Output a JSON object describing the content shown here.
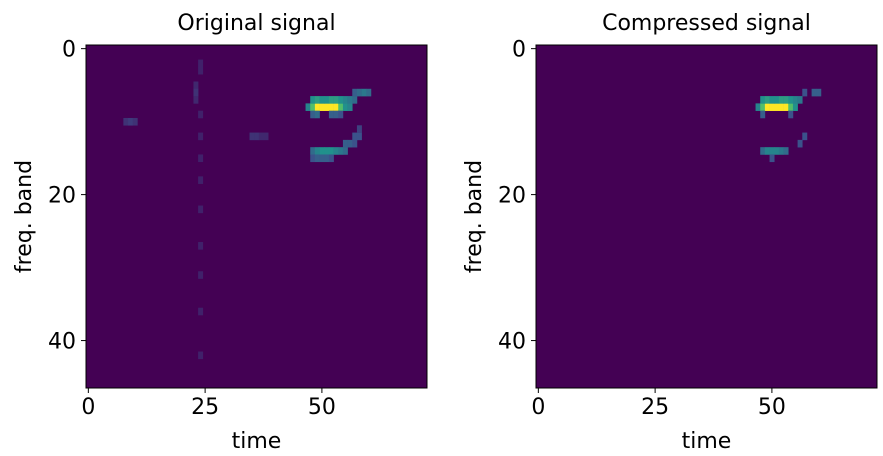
{
  "chart_data": [
    {
      "type": "heatmap",
      "title": "Original signal",
      "xlabel": "time",
      "ylabel": "freq. band",
      "xlim": [
        -0.5,
        72.5
      ],
      "ylim": [
        46.5,
        -0.5
      ],
      "xticks": [
        0,
        25,
        50
      ],
      "yticks": [
        0,
        20,
        40
      ],
      "zlim": [
        0,
        1
      ],
      "colormap": "viridis",
      "cells": [
        {
          "x": 47,
          "y": 8,
          "value": 0.45
        },
        {
          "x": 48,
          "y": 8,
          "value": 0.7
        },
        {
          "x": 49,
          "y": 8,
          "value": 1
        },
        {
          "x": 50,
          "y": 8,
          "value": 1
        },
        {
          "x": 51,
          "y": 8,
          "value": 1
        },
        {
          "x": 52,
          "y": 8,
          "value": 1
        },
        {
          "x": 53,
          "y": 8,
          "value": 1
        },
        {
          "x": 54,
          "y": 8,
          "value": 0.7
        },
        {
          "x": 55,
          "y": 8,
          "value": 0.5
        },
        {
          "x": 56,
          "y": 8,
          "value": 0.45
        },
        {
          "x": 48,
          "y": 7,
          "value": 0.5
        },
        {
          "x": 49,
          "y": 7,
          "value": 0.55
        },
        {
          "x": 50,
          "y": 7,
          "value": 0.5
        },
        {
          "x": 51,
          "y": 7,
          "value": 0.5
        },
        {
          "x": 52,
          "y": 7,
          "value": 0.55
        },
        {
          "x": 53,
          "y": 7,
          "value": 0.55
        },
        {
          "x": 54,
          "y": 7,
          "value": 0.5
        },
        {
          "x": 55,
          "y": 7,
          "value": 0.45
        },
        {
          "x": 56,
          "y": 7,
          "value": 0.4
        },
        {
          "x": 57,
          "y": 7,
          "value": 0.35
        },
        {
          "x": 57,
          "y": 6,
          "value": 0.3
        },
        {
          "x": 58,
          "y": 6,
          "value": 0.35
        },
        {
          "x": 59,
          "y": 6,
          "value": 0.4
        },
        {
          "x": 60,
          "y": 6,
          "value": 0.35
        },
        {
          "x": 48,
          "y": 9,
          "value": 0.3
        },
        {
          "x": 49,
          "y": 9,
          "value": 0.35
        },
        {
          "x": 52,
          "y": 9,
          "value": 0.3
        },
        {
          "x": 53,
          "y": 9,
          "value": 0.3
        },
        {
          "x": 54,
          "y": 9,
          "value": 0.25
        },
        {
          "x": 48,
          "y": 14,
          "value": 0.35
        },
        {
          "x": 49,
          "y": 14,
          "value": 0.45
        },
        {
          "x": 50,
          "y": 14,
          "value": 0.5
        },
        {
          "x": 51,
          "y": 14,
          "value": 0.5
        },
        {
          "x": 52,
          "y": 14,
          "value": 0.5
        },
        {
          "x": 53,
          "y": 14,
          "value": 0.45
        },
        {
          "x": 54,
          "y": 14,
          "value": 0.4
        },
        {
          "x": 55,
          "y": 14,
          "value": 0.35
        },
        {
          "x": 48,
          "y": 15,
          "value": 0.25
        },
        {
          "x": 49,
          "y": 15,
          "value": 0.3
        },
        {
          "x": 50,
          "y": 15,
          "value": 0.3
        },
        {
          "x": 51,
          "y": 15,
          "value": 0.3
        },
        {
          "x": 52,
          "y": 15,
          "value": 0.25
        },
        {
          "x": 55,
          "y": 13,
          "value": 0.3
        },
        {
          "x": 56,
          "y": 13,
          "value": 0.3
        },
        {
          "x": 57,
          "y": 13,
          "value": 0.25
        },
        {
          "x": 57,
          "y": 12,
          "value": 0.25
        },
        {
          "x": 58,
          "y": 12,
          "value": 0.25
        },
        {
          "x": 58,
          "y": 11,
          "value": 0.2
        },
        {
          "x": 8,
          "y": 10,
          "value": 0.15
        },
        {
          "x": 9,
          "y": 10,
          "value": 0.18
        },
        {
          "x": 10,
          "y": 10,
          "value": 0.15
        },
        {
          "x": 35,
          "y": 12,
          "value": 0.15
        },
        {
          "x": 36,
          "y": 12,
          "value": 0.15
        },
        {
          "x": 37,
          "y": 12,
          "value": 0.12
        },
        {
          "x": 38,
          "y": 12,
          "value": 0.12
        },
        {
          "x": 23,
          "y": 5,
          "value": 0.12
        },
        {
          "x": 23,
          "y": 6,
          "value": 0.15
        },
        {
          "x": 23,
          "y": 7,
          "value": 0.12
        },
        {
          "x": 24,
          "y": 2,
          "value": 0.1
        },
        {
          "x": 24,
          "y": 3,
          "value": 0.1
        },
        {
          "x": 24,
          "y": 9,
          "value": 0.1
        },
        {
          "x": 24,
          "y": 12,
          "value": 0.1
        },
        {
          "x": 24,
          "y": 15,
          "value": 0.1
        },
        {
          "x": 24,
          "y": 18,
          "value": 0.1
        },
        {
          "x": 24,
          "y": 22,
          "value": 0.1
        },
        {
          "x": 24,
          "y": 27,
          "value": 0.1
        },
        {
          "x": 24,
          "y": 31,
          "value": 0.1
        },
        {
          "x": 24,
          "y": 36,
          "value": 0.1
        },
        {
          "x": 24,
          "y": 42,
          "value": 0.1
        }
      ]
    },
    {
      "type": "heatmap",
      "title": "Compressed signal",
      "xlabel": "time",
      "ylabel": "freq. band",
      "xlim": [
        -0.5,
        72.5
      ],
      "ylim": [
        46.5,
        -0.5
      ],
      "xticks": [
        0,
        25,
        50
      ],
      "yticks": [
        0,
        20,
        40
      ],
      "zlim": [
        0,
        1
      ],
      "colormap": "viridis",
      "cells": [
        {
          "x": 47,
          "y": 8,
          "value": 0.45
        },
        {
          "x": 48,
          "y": 8,
          "value": 0.7
        },
        {
          "x": 49,
          "y": 8,
          "value": 1
        },
        {
          "x": 50,
          "y": 8,
          "value": 1
        },
        {
          "x": 51,
          "y": 8,
          "value": 1
        },
        {
          "x": 52,
          "y": 8,
          "value": 1
        },
        {
          "x": 53,
          "y": 8,
          "value": 1
        },
        {
          "x": 54,
          "y": 8,
          "value": 0.7
        },
        {
          "x": 55,
          "y": 8,
          "value": 0.5
        },
        {
          "x": 48,
          "y": 7,
          "value": 0.5
        },
        {
          "x": 49,
          "y": 7,
          "value": 0.55
        },
        {
          "x": 50,
          "y": 7,
          "value": 0.5
        },
        {
          "x": 51,
          "y": 7,
          "value": 0.5
        },
        {
          "x": 52,
          "y": 7,
          "value": 0.55
        },
        {
          "x": 53,
          "y": 7,
          "value": 0.55
        },
        {
          "x": 54,
          "y": 7,
          "value": 0.5
        },
        {
          "x": 55,
          "y": 7,
          "value": 0.45
        },
        {
          "x": 56,
          "y": 7,
          "value": 0.4
        },
        {
          "x": 59,
          "y": 6,
          "value": 0.3
        },
        {
          "x": 60,
          "y": 6,
          "value": 0.3
        },
        {
          "x": 57,
          "y": 6,
          "value": 0.25
        },
        {
          "x": 48,
          "y": 9,
          "value": 0.3
        },
        {
          "x": 54,
          "y": 9,
          "value": 0.25
        },
        {
          "x": 48,
          "y": 14,
          "value": 0.35
        },
        {
          "x": 49,
          "y": 14,
          "value": 0.45
        },
        {
          "x": 50,
          "y": 14,
          "value": 0.45
        },
        {
          "x": 51,
          "y": 14,
          "value": 0.45
        },
        {
          "x": 52,
          "y": 14,
          "value": 0.4
        },
        {
          "x": 53,
          "y": 14,
          "value": 0.35
        },
        {
          "x": 50,
          "y": 15,
          "value": 0.25
        },
        {
          "x": 56,
          "y": 13,
          "value": 0.25
        },
        {
          "x": 57,
          "y": 12,
          "value": 0.25
        }
      ]
    }
  ]
}
